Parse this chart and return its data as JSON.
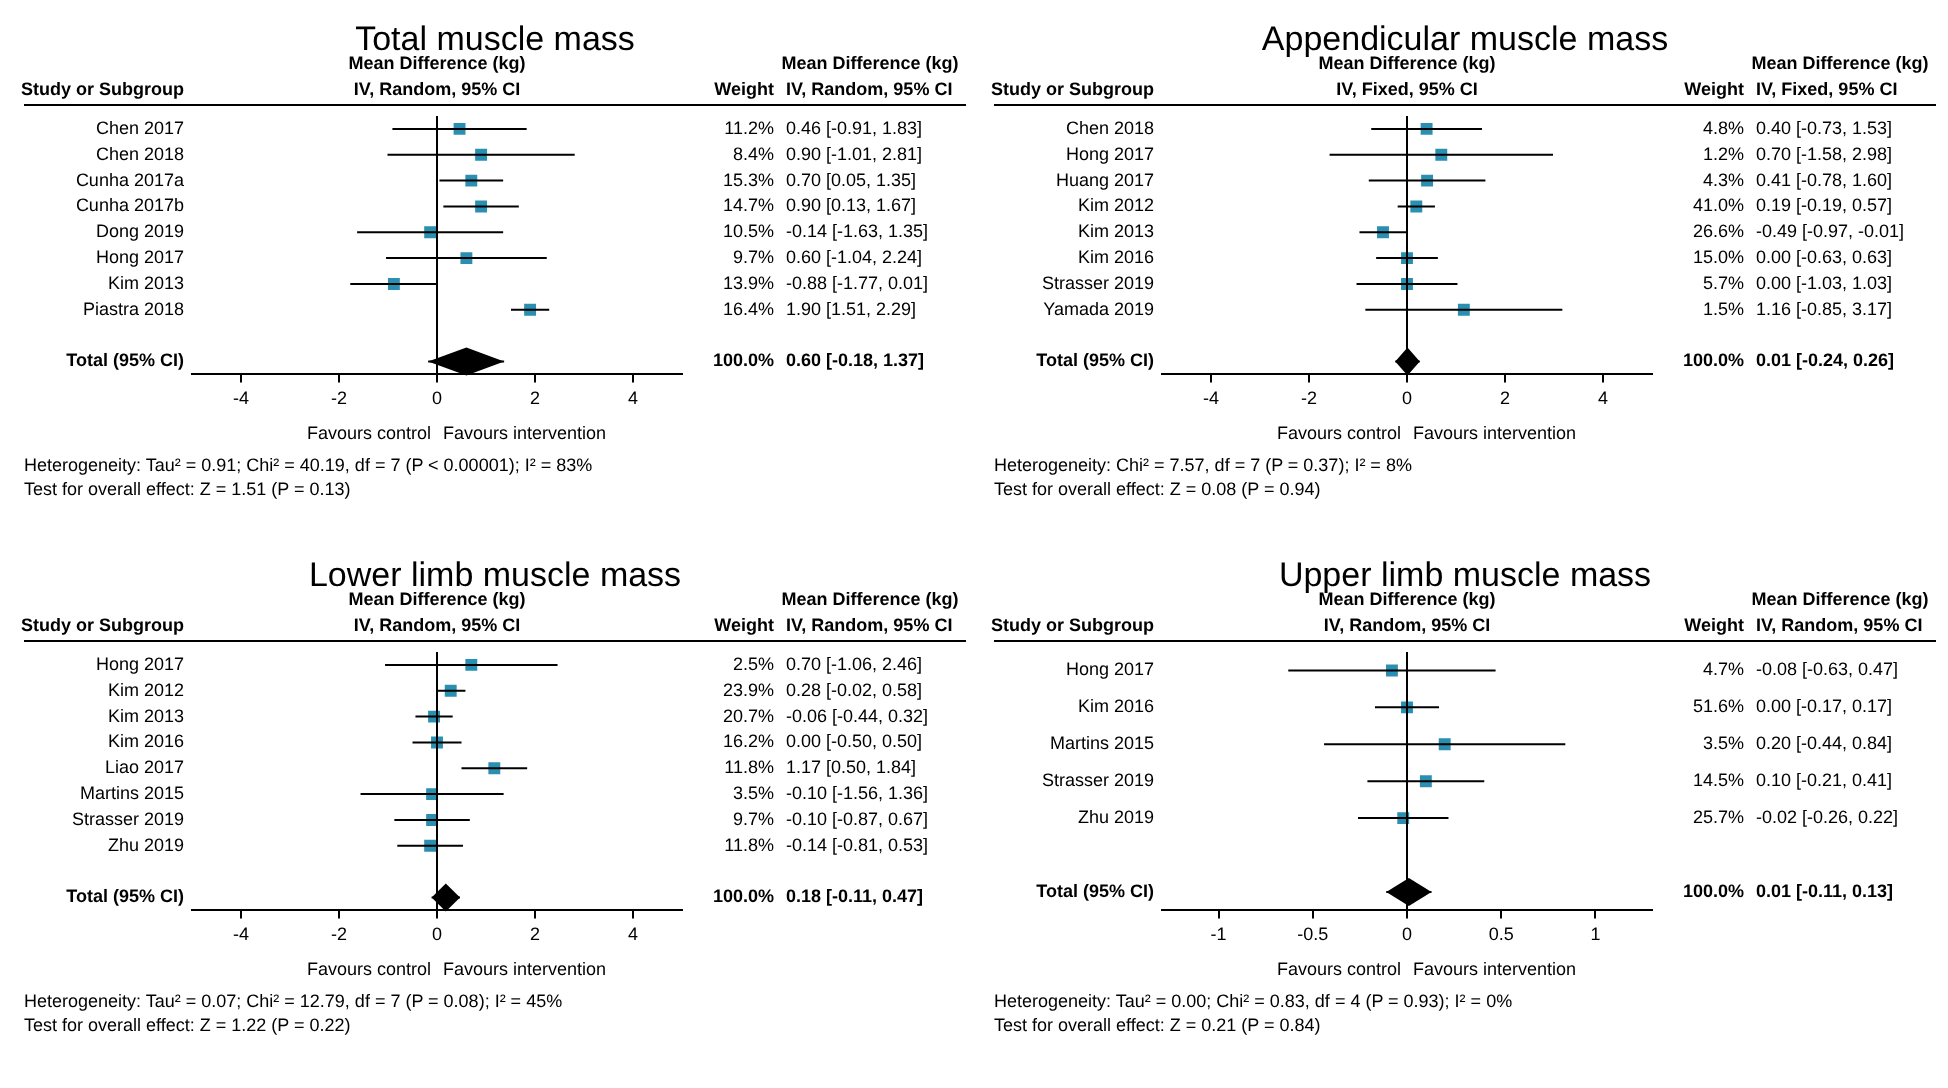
{
  "chart_data": [
    {
      "type": "scatter",
      "orientation": "horizontal",
      "title": "Total muscle mass",
      "categories": [
        "Chen 2017",
        "Chen 2018",
        "Cunha 2017a",
        "Cunha 2017b",
        "Dong 2019",
        "Hong 2017",
        "Kim 2013",
        "Piastra 2018",
        null,
        "Total (95% CI)"
      ],
      "y2_categories": [
        "11.2%",
        "8.4%",
        "15.3%",
        "14.7%",
        "10.5%",
        "9.7%",
        "13.9%",
        "16.4%",
        null,
        "100.0%"
      ],
      "value_labels": [
        "0.46 [-0.91, 1.83]",
        "0.90 [-1.01, 2.81]",
        "0.70 [0.05, 1.35]",
        "0.90 [0.13, 1.67]",
        "-0.14 [-1.63, 1.35]",
        "0.60 [-1.04, 2.24]",
        "-0.88 [-1.77, 0.01]",
        "1.90 [1.51, 2.29]",
        null,
        "0.60 [-0.18, 1.37]"
      ],
      "series": [
        {
          "color": "#2a8fb0",
          "marker": "square",
          "values": [
            0.46,
            0.9,
            0.7,
            0.9,
            -0.14,
            0.6,
            -0.88,
            1.9,
            null,
            null
          ],
          "errors": [
            [
              -0.91,
              1.83
            ],
            [
              -1.01,
              2.81
            ],
            [
              0.05,
              1.35
            ],
            [
              0.13,
              1.67
            ],
            [
              -1.63,
              1.35
            ],
            [
              -1.04,
              2.24
            ],
            [
              -1.77,
              0.01
            ],
            [
              1.51,
              2.29
            ],
            null,
            null
          ]
        },
        {
          "color": "#000000",
          "marker": "diamond",
          "values": [
            null,
            null,
            null,
            null,
            null,
            null,
            null,
            null,
            null,
            0.6
          ],
          "errors": [
            null,
            null,
            null,
            null,
            null,
            null,
            null,
            null,
            null,
            [
              -0.18,
              1.37
            ]
          ]
        }
      ],
      "xlim": [
        -5,
        5
      ],
      "xticks": [
        -4,
        -2,
        0,
        2,
        4
      ],
      "grid": false,
      "legend": false,
      "ref_lines": [
        {
          "axis": "x",
          "value": 0,
          "color": "#000000"
        }
      ],
      "annotations": [
        "Study or Subgroup",
        "Weight",
        "Mean Difference (kg)",
        "IV, Random, 95% CI",
        "Mean Difference (kg)",
        "IV, Random, 95% CI",
        "Heterogeneity: Tau² = 0.91; Chi² = 40.19, df = 7 (P < 0.00001); I² = 83%",
        "Test for overall effect: Z = 1.51 (P = 0.13)",
        "Favours control",
        "Favours intervention"
      ]
    },
    {
      "type": "scatter",
      "orientation": "horizontal",
      "title": "Appendicular muscle mass",
      "categories": [
        "Chen 2018",
        "Hong 2017",
        "Huang 2017",
        "Kim 2012",
        "Kim 2013",
        "Kim 2016",
        "Strasser 2019",
        "Yamada 2019",
        null,
        "Total (95% CI)"
      ],
      "y2_categories": [
        "4.8%",
        "1.2%",
        "4.3%",
        "41.0%",
        "26.6%",
        "15.0%",
        "5.7%",
        "1.5%",
        null,
        "100.0%"
      ],
      "value_labels": [
        "0.40 [-0.73, 1.53]",
        "0.70 [-1.58, 2.98]",
        "0.41 [-0.78, 1.60]",
        "0.19 [-0.19, 0.57]",
        "-0.49 [-0.97, -0.01]",
        "0.00 [-0.63, 0.63]",
        "0.00 [-1.03, 1.03]",
        "1.16 [-0.85, 3.17]",
        null,
        "0.01 [-0.24, 0.26]"
      ],
      "series": [
        {
          "color": "#2a8fb0",
          "marker": "square",
          "values": [
            0.4,
            0.7,
            0.41,
            0.19,
            -0.49,
            0.0,
            0.0,
            1.16,
            null,
            null
          ],
          "errors": [
            [
              -0.73,
              1.53
            ],
            [
              -1.58,
              2.98
            ],
            [
              -0.78,
              1.6
            ],
            [
              -0.19,
              0.57
            ],
            [
              -0.97,
              -0.01
            ],
            [
              -0.63,
              0.63
            ],
            [
              -1.03,
              1.03
            ],
            [
              -0.85,
              3.17
            ],
            null,
            null
          ]
        },
        {
          "color": "#000000",
          "marker": "diamond",
          "values": [
            null,
            null,
            null,
            null,
            null,
            null,
            null,
            null,
            null,
            0.01
          ],
          "errors": [
            null,
            null,
            null,
            null,
            null,
            null,
            null,
            null,
            null,
            [
              -0.24,
              0.26
            ]
          ]
        }
      ],
      "xlim": [
        -5,
        5
      ],
      "xticks": [
        -4,
        -2,
        0,
        2,
        4
      ],
      "grid": false,
      "legend": false,
      "ref_lines": [
        {
          "axis": "x",
          "value": 0,
          "color": "#000000"
        }
      ],
      "annotations": [
        "Study or Subgroup",
        "Weight",
        "Mean Difference (kg)",
        "IV, Fixed, 95% CI",
        "Mean Difference (kg)",
        "IV, Fixed, 95% CI",
        "Heterogeneity: Chi² = 7.57, df = 7 (P = 0.37); I² = 8%",
        "Test for overall effect: Z = 0.08 (P = 0.94)",
        "Favours control",
        "Favours intervention"
      ]
    },
    {
      "type": "scatter",
      "orientation": "horizontal",
      "title": "Lower limb muscle mass",
      "categories": [
        "Hong 2017",
        "Kim 2012",
        "Kim 2013",
        "Kim 2016",
        "Liao 2017",
        "Martins 2015",
        "Strasser 2019",
        "Zhu 2019",
        null,
        "Total (95% CI)"
      ],
      "y2_categories": [
        "2.5%",
        "23.9%",
        "20.7%",
        "16.2%",
        "11.8%",
        "3.5%",
        "9.7%",
        "11.8%",
        null,
        "100.0%"
      ],
      "value_labels": [
        "0.70 [-1.06, 2.46]",
        "0.28 [-0.02, 0.58]",
        "-0.06 [-0.44, 0.32]",
        "0.00 [-0.50, 0.50]",
        "1.17 [0.50, 1.84]",
        "-0.10 [-1.56, 1.36]",
        "-0.10 [-0.87, 0.67]",
        "-0.14 [-0.81, 0.53]",
        null,
        "0.18 [-0.11, 0.47]"
      ],
      "series": [
        {
          "color": "#2a8fb0",
          "marker": "square",
          "values": [
            0.7,
            0.28,
            -0.06,
            0.0,
            1.17,
            -0.1,
            -0.1,
            -0.14,
            null,
            null
          ],
          "errors": [
            [
              -1.06,
              2.46
            ],
            [
              -0.02,
              0.58
            ],
            [
              -0.44,
              0.32
            ],
            [
              -0.5,
              0.5
            ],
            [
              0.5,
              1.84
            ],
            [
              -1.56,
              1.36
            ],
            [
              -0.87,
              0.67
            ],
            [
              -0.81,
              0.53
            ],
            null,
            null
          ]
        },
        {
          "color": "#000000",
          "marker": "diamond",
          "values": [
            null,
            null,
            null,
            null,
            null,
            null,
            null,
            null,
            null,
            0.18
          ],
          "errors": [
            null,
            null,
            null,
            null,
            null,
            null,
            null,
            null,
            null,
            [
              -0.11,
              0.47
            ]
          ]
        }
      ],
      "xlim": [
        -5,
        5
      ],
      "xticks": [
        -4,
        -2,
        0,
        2,
        4
      ],
      "grid": false,
      "legend": false,
      "ref_lines": [
        {
          "axis": "x",
          "value": 0,
          "color": "#000000"
        }
      ],
      "annotations": [
        "Study or Subgroup",
        "Weight",
        "Mean Difference (kg)",
        "IV, Random, 95% CI",
        "Mean Difference (kg)",
        "IV, Random, 95% CI",
        "Heterogeneity: Tau² = 0.07; Chi² = 12.79, df = 7 (P = 0.08); I² = 45%",
        "Test for overall effect: Z = 1.22 (P = 0.22)",
        "Favours control",
        "Favours intervention"
      ]
    },
    {
      "type": "scatter",
      "orientation": "horizontal",
      "title": "Upper limb muscle mass",
      "categories": [
        "Hong 2017",
        "Kim 2016",
        "Martins 2015",
        "Strasser 2019",
        "Zhu 2019",
        null,
        "Total (95% CI)"
      ],
      "y2_categories": [
        "4.7%",
        "51.6%",
        "3.5%",
        "14.5%",
        "25.7%",
        null,
        "100.0%"
      ],
      "value_labels": [
        "-0.08 [-0.63, 0.47]",
        "0.00 [-0.17, 0.17]",
        "0.20 [-0.44, 0.84]",
        "0.10 [-0.21, 0.41]",
        "-0.02 [-0.26, 0.22]",
        null,
        "0.01 [-0.11, 0.13]"
      ],
      "series": [
        {
          "color": "#2a8fb0",
          "marker": "square",
          "values": [
            -0.08,
            0.0,
            0.2,
            0.1,
            -0.02,
            null,
            null
          ],
          "errors": [
            [
              -0.63,
              0.47
            ],
            [
              -0.17,
              0.17
            ],
            [
              -0.44,
              0.84
            ],
            [
              -0.21,
              0.41
            ],
            [
              -0.26,
              0.22
            ],
            null,
            null
          ]
        },
        {
          "color": "#000000",
          "marker": "diamond",
          "values": [
            null,
            null,
            null,
            null,
            null,
            null,
            0.01
          ],
          "errors": [
            null,
            null,
            null,
            null,
            null,
            null,
            [
              -0.11,
              0.13
            ]
          ]
        }
      ],
      "xlim": [
        -1.3,
        1.3
      ],
      "xticks": [
        -1,
        -0.5,
        0,
        0.5,
        1
      ],
      "grid": false,
      "legend": false,
      "ref_lines": [
        {
          "axis": "x",
          "value": 0,
          "color": "#000000"
        }
      ],
      "annotations": [
        "Study or Subgroup",
        "Weight",
        "Mean Difference (kg)",
        "IV, Random, 95% CI",
        "Mean Difference (kg)",
        "IV, Random, 95% CI",
        "Heterogeneity: Tau² = 0.00; Chi² = 0.83, df = 4 (P = 0.93); I² = 0%",
        "Test for overall effect: Z = 0.21 (P = 0.84)",
        "Favours control",
        "Favours intervention"
      ]
    }
  ]
}
